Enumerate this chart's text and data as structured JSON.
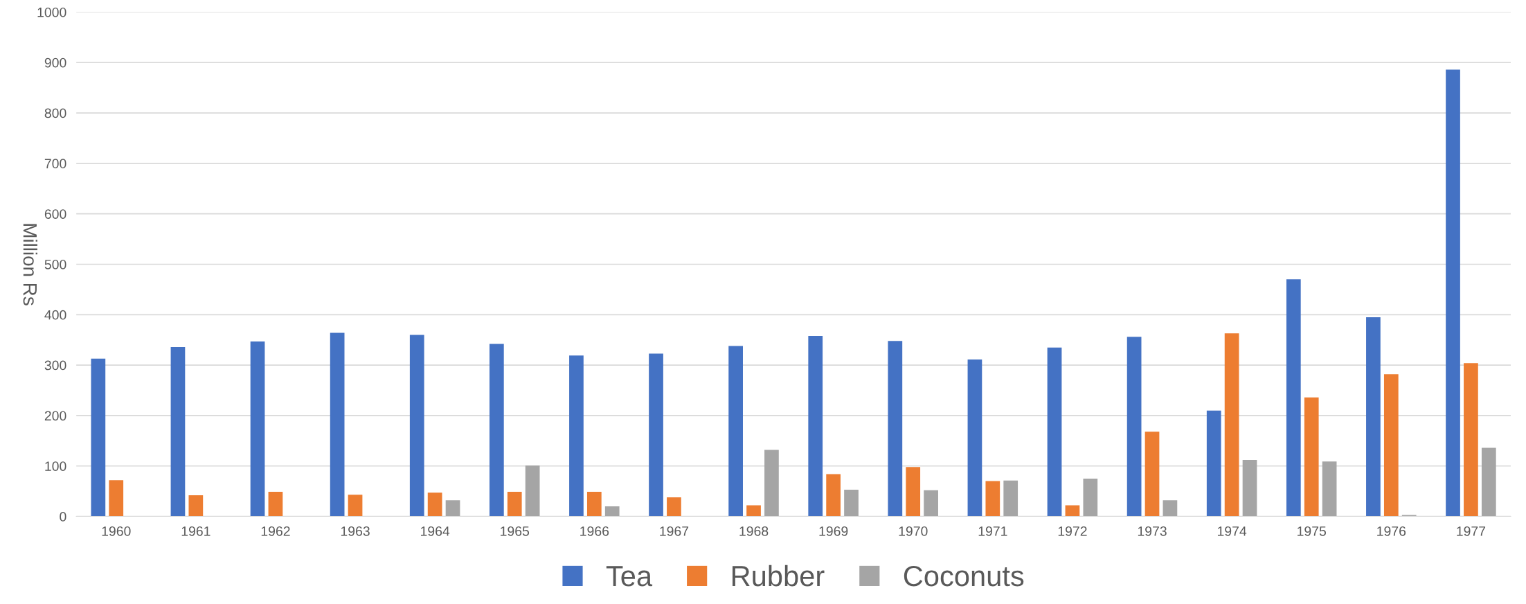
{
  "chart_data": {
    "type": "bar",
    "ylabel": "Million Rs",
    "categories": [
      "1960",
      "1961",
      "1962",
      "1963",
      "1964",
      "1965",
      "1966",
      "1967",
      "1968",
      "1969",
      "1970",
      "1971",
      "1972",
      "1973",
      "1974",
      "1975",
      "1976",
      "1977"
    ],
    "series": [
      {
        "name": "Tea",
        "color": "#4472c4",
        "values": [
          313,
          336,
          347,
          364,
          360,
          342,
          319,
          323,
          338,
          358,
          348,
          311,
          335,
          356,
          210,
          470,
          395,
          886
        ]
      },
      {
        "name": "Rubber",
        "color": "#ed7d31",
        "values": [
          72,
          42,
          49,
          43,
          47,
          49,
          49,
          38,
          22,
          84,
          98,
          70,
          22,
          168,
          363,
          236,
          282,
          304
        ]
      },
      {
        "name": "Coconuts",
        "color": "#a5a5a5",
        "values": [
          0,
          0,
          0,
          0,
          32,
          101,
          20,
          0,
          132,
          53,
          52,
          71,
          75,
          32,
          112,
          109,
          3,
          136
        ]
      }
    ],
    "ylim": [
      0,
      1000
    ],
    "yticks": [
      0,
      100,
      200,
      300,
      400,
      500,
      600,
      700,
      800,
      900,
      1000
    ],
    "grid": "y",
    "legend": "bottom"
  }
}
